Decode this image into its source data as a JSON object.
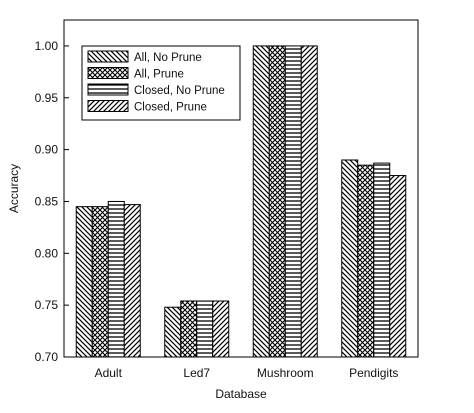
{
  "chart_data": {
    "type": "bar",
    "title": "",
    "xlabel": "Database",
    "ylabel": "Accuracy",
    "categories": [
      "Adult",
      "Led7",
      "Mushroom",
      "Pendigits"
    ],
    "ylim": [
      0.7,
      1.025
    ],
    "yticks": [
      "0.70",
      "0.75",
      "0.80",
      "0.85",
      "0.90",
      "0.95",
      "1.00"
    ],
    "grid": false,
    "legend_position": "top-left",
    "series": [
      {
        "name": "All, No Prune",
        "pattern": "back-diagonal",
        "values": [
          0.845,
          0.748,
          1.0,
          0.89
        ]
      },
      {
        "name": "All, Prune",
        "pattern": "crosshatch",
        "values": [
          0.845,
          0.754,
          1.0,
          0.885
        ]
      },
      {
        "name": "Closed, No Prune",
        "pattern": "horizontal",
        "values": [
          0.85,
          0.754,
          1.0,
          0.887
        ]
      },
      {
        "name": "Closed, Prune",
        "pattern": "forward-diagonal",
        "values": [
          0.847,
          0.754,
          1.0,
          0.875
        ]
      }
    ]
  }
}
